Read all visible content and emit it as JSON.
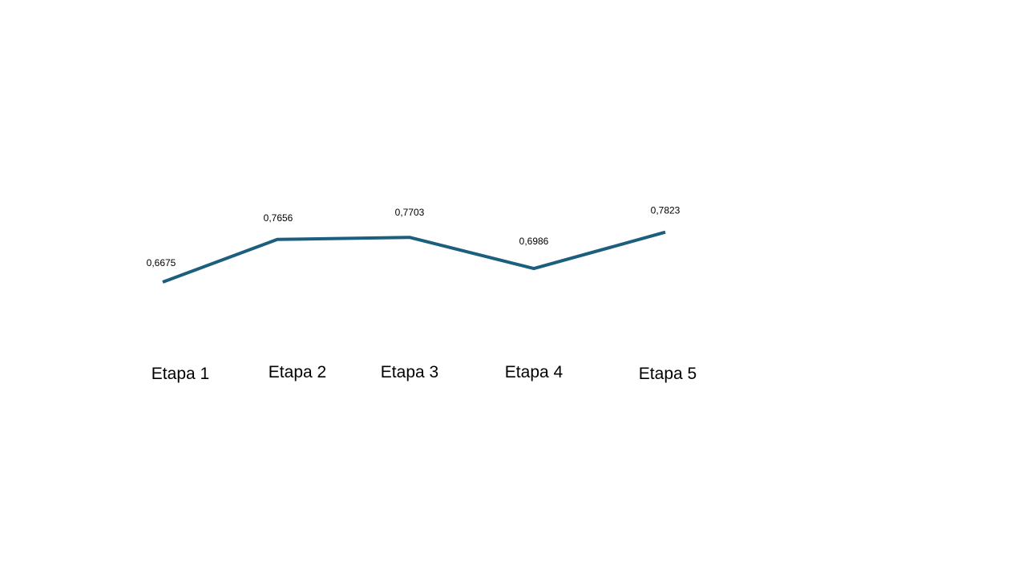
{
  "chart_data": {
    "type": "line",
    "categories": [
      "Etapa 1",
      "Etapa 2",
      "Etapa 3",
      "Etapa 4",
      "Etapa 5"
    ],
    "series": [
      {
        "values": [
          0.6675,
          0.7656,
          0.7703,
          0.6986,
          0.7823
        ],
        "value_labels": [
          "0,6675",
          "0,7656",
          "0,7703",
          "0,6986",
          "0,7823"
        ],
        "color": "#1B5E7E"
      }
    ],
    "title": "",
    "xlabel": "",
    "ylabel": "",
    "grid": false,
    "legend": "none"
  }
}
